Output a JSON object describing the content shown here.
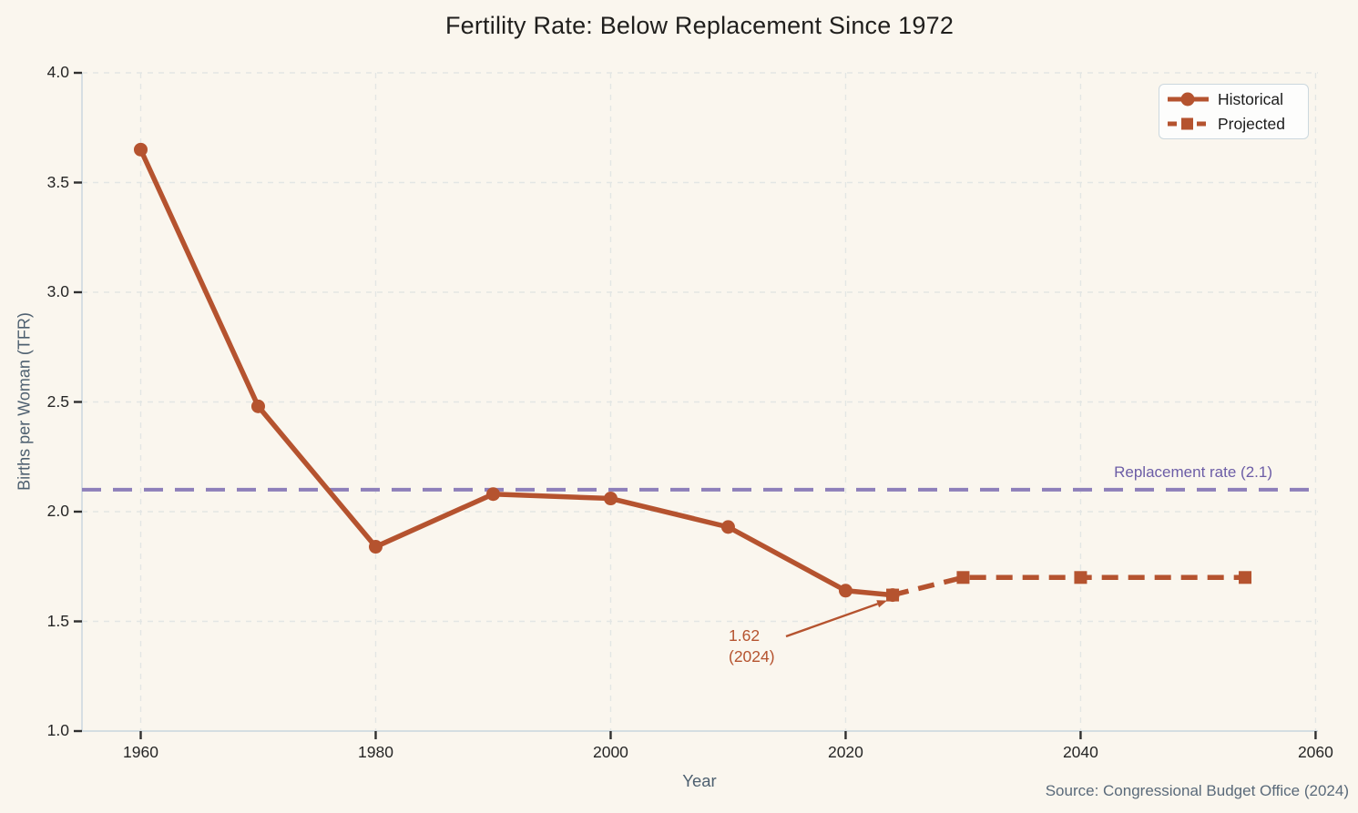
{
  "page": {
    "title": "Fertility Rate: Below Replacement Since 1972",
    "source_note": "Source: Congressional Budget Office (2024)"
  },
  "legend": {
    "items": [
      {
        "label": "Historical",
        "marker": "circle",
        "line_style": "solid"
      },
      {
        "label": "Projected",
        "marker": "square",
        "line_style": "dashed"
      }
    ]
  },
  "annotation": {
    "line1": "1.62",
    "line2": "(2024)"
  },
  "reference": {
    "label": "Replacement rate (2.1)",
    "value": 2.1
  },
  "colors": {
    "series": "#b5532f",
    "reference_line": "#8d7fba",
    "reference_label": "#6c5da6",
    "title": "#201f1d",
    "tick_label": "#262626",
    "axis_label": "#4e6070",
    "source": "#5a6a7a",
    "grid": "#e3e6e4",
    "spine": "#cfdae1",
    "tick": "#2f2f2f",
    "background": "#faf6ee"
  },
  "chart_data": {
    "type": "line",
    "title": "Fertility Rate: Below Replacement Since 1972",
    "xlabel": "Year",
    "ylabel": "Births per Woman (TFR)",
    "xlim": [
      1955,
      2060.2
    ],
    "ylim": [
      1.0,
      4.0
    ],
    "xticks": [
      1960,
      1980,
      2000,
      2020,
      2040,
      2060
    ],
    "yticks": [
      1.0,
      1.5,
      2.0,
      2.5,
      3.0,
      3.5,
      4.0
    ],
    "grid": true,
    "legend_position": "upper right",
    "series": [
      {
        "name": "Historical",
        "line_style": "solid",
        "marker": "circle",
        "x": [
          1960,
          1970,
          1980,
          1990,
          2000,
          2010,
          2020,
          2024
        ],
        "y": [
          3.65,
          2.48,
          1.84,
          2.08,
          2.06,
          1.93,
          1.64,
          1.62
        ]
      },
      {
        "name": "Projected",
        "line_style": "dashed",
        "marker": "square",
        "x": [
          2024,
          2030,
          2040,
          2054
        ],
        "y": [
          1.62,
          1.7,
          1.7,
          1.7
        ]
      }
    ],
    "reference_line": {
      "y": 2.1,
      "label": "Replacement rate (2.1)"
    },
    "annotation": {
      "text": "1.62 (2024)",
      "target_x": 2024,
      "target_y": 1.62
    },
    "source": "Source: Congressional Budget Office (2024)"
  }
}
